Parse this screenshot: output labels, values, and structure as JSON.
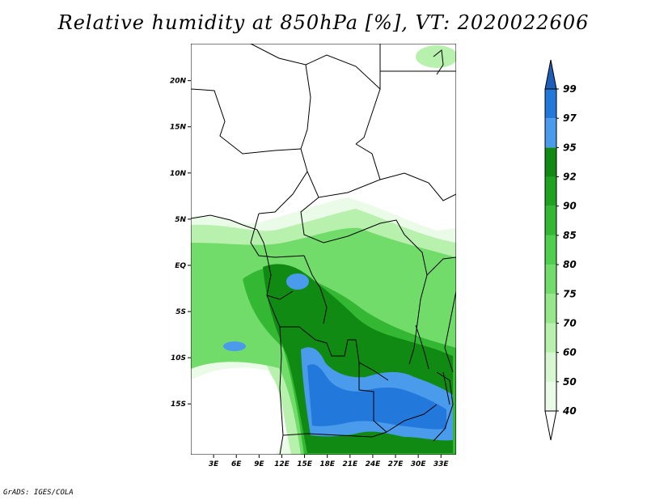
{
  "title": "Relative humidity at 850hPa [%], VT: 2020022606",
  "credit": "GrADS: IGES/COLA",
  "map": {
    "variable": "Relative humidity at 850hPa",
    "units": "%",
    "valid_time": "2020022606",
    "lon_ticks": [
      "3E",
      "6E",
      "9E",
      "12E",
      "15E",
      "18E",
      "21E",
      "24E",
      "27E",
      "30E",
      "33E"
    ],
    "lat_ticks": [
      "20N",
      "15N",
      "10N",
      "5N",
      "EQ",
      "5S",
      "10S",
      "15S"
    ]
  },
  "colorbar": {
    "levels": [
      "40",
      "50",
      "60",
      "70",
      "75",
      "80",
      "85",
      "90",
      "92",
      "95",
      "97",
      "99"
    ],
    "colors": [
      "#ffffff",
      "#eafbe7",
      "#d6f7d0",
      "#b8f0ae",
      "#96e78b",
      "#72dc6a",
      "#50ce4d",
      "#34b833",
      "#1ea21f",
      "#118a14",
      "#4a9bec",
      "#2378dc",
      "#1d5fb8"
    ]
  },
  "colors": {
    "low_rh": "#ffffff",
    "mid_rh": "#72dc6a",
    "high_rh": "#2378dc"
  }
}
